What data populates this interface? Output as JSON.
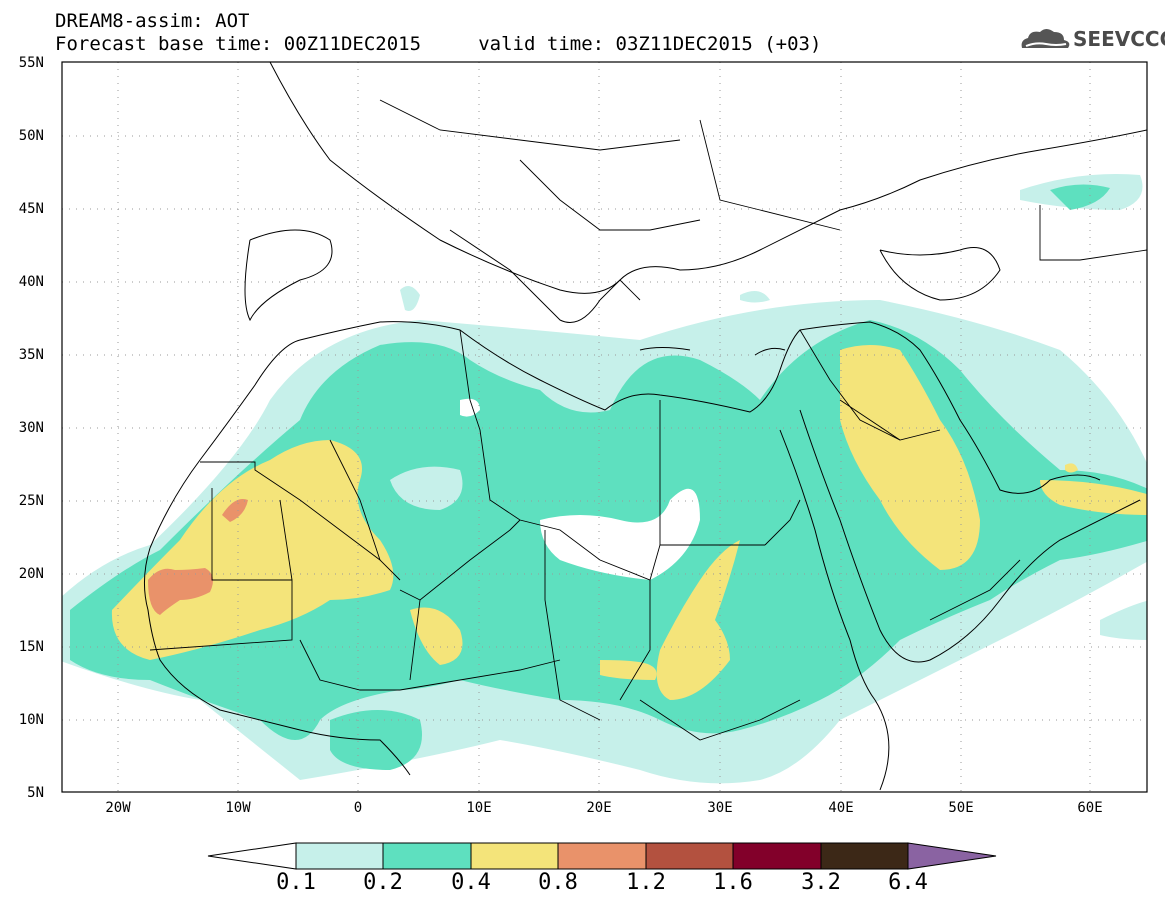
{
  "header": {
    "line1": "DREAM8-assim: AOT",
    "line2": "Forecast base time: 00Z11DEC2015     valid time: 03Z11DEC2015 (+03)",
    "logo_text": "SEEVCCC"
  },
  "map": {
    "lat_labels": [
      "55N",
      "50N",
      "45N",
      "40N",
      "35N",
      "30N",
      "25N",
      "20N",
      "15N",
      "10N",
      "5N"
    ],
    "lon_labels": [
      "20W",
      "10W",
      "0",
      "10E",
      "20E",
      "30E",
      "40E",
      "50E",
      "60E"
    ],
    "extent": {
      "lon_min": -25,
      "lon_max": 65,
      "lat_min": 5,
      "lat_max": 55
    }
  },
  "legend": {
    "thresholds": [
      "0.1",
      "0.2",
      "0.4",
      "0.8",
      "1.2",
      "1.6",
      "3.2",
      "6.4"
    ],
    "colors": [
      "#c6f0ea",
      "#5ee0bf",
      "#f4e47a",
      "#e9926a",
      "#b3513f",
      "#82002a",
      "#3c2817",
      "#8a63a2"
    ]
  }
}
